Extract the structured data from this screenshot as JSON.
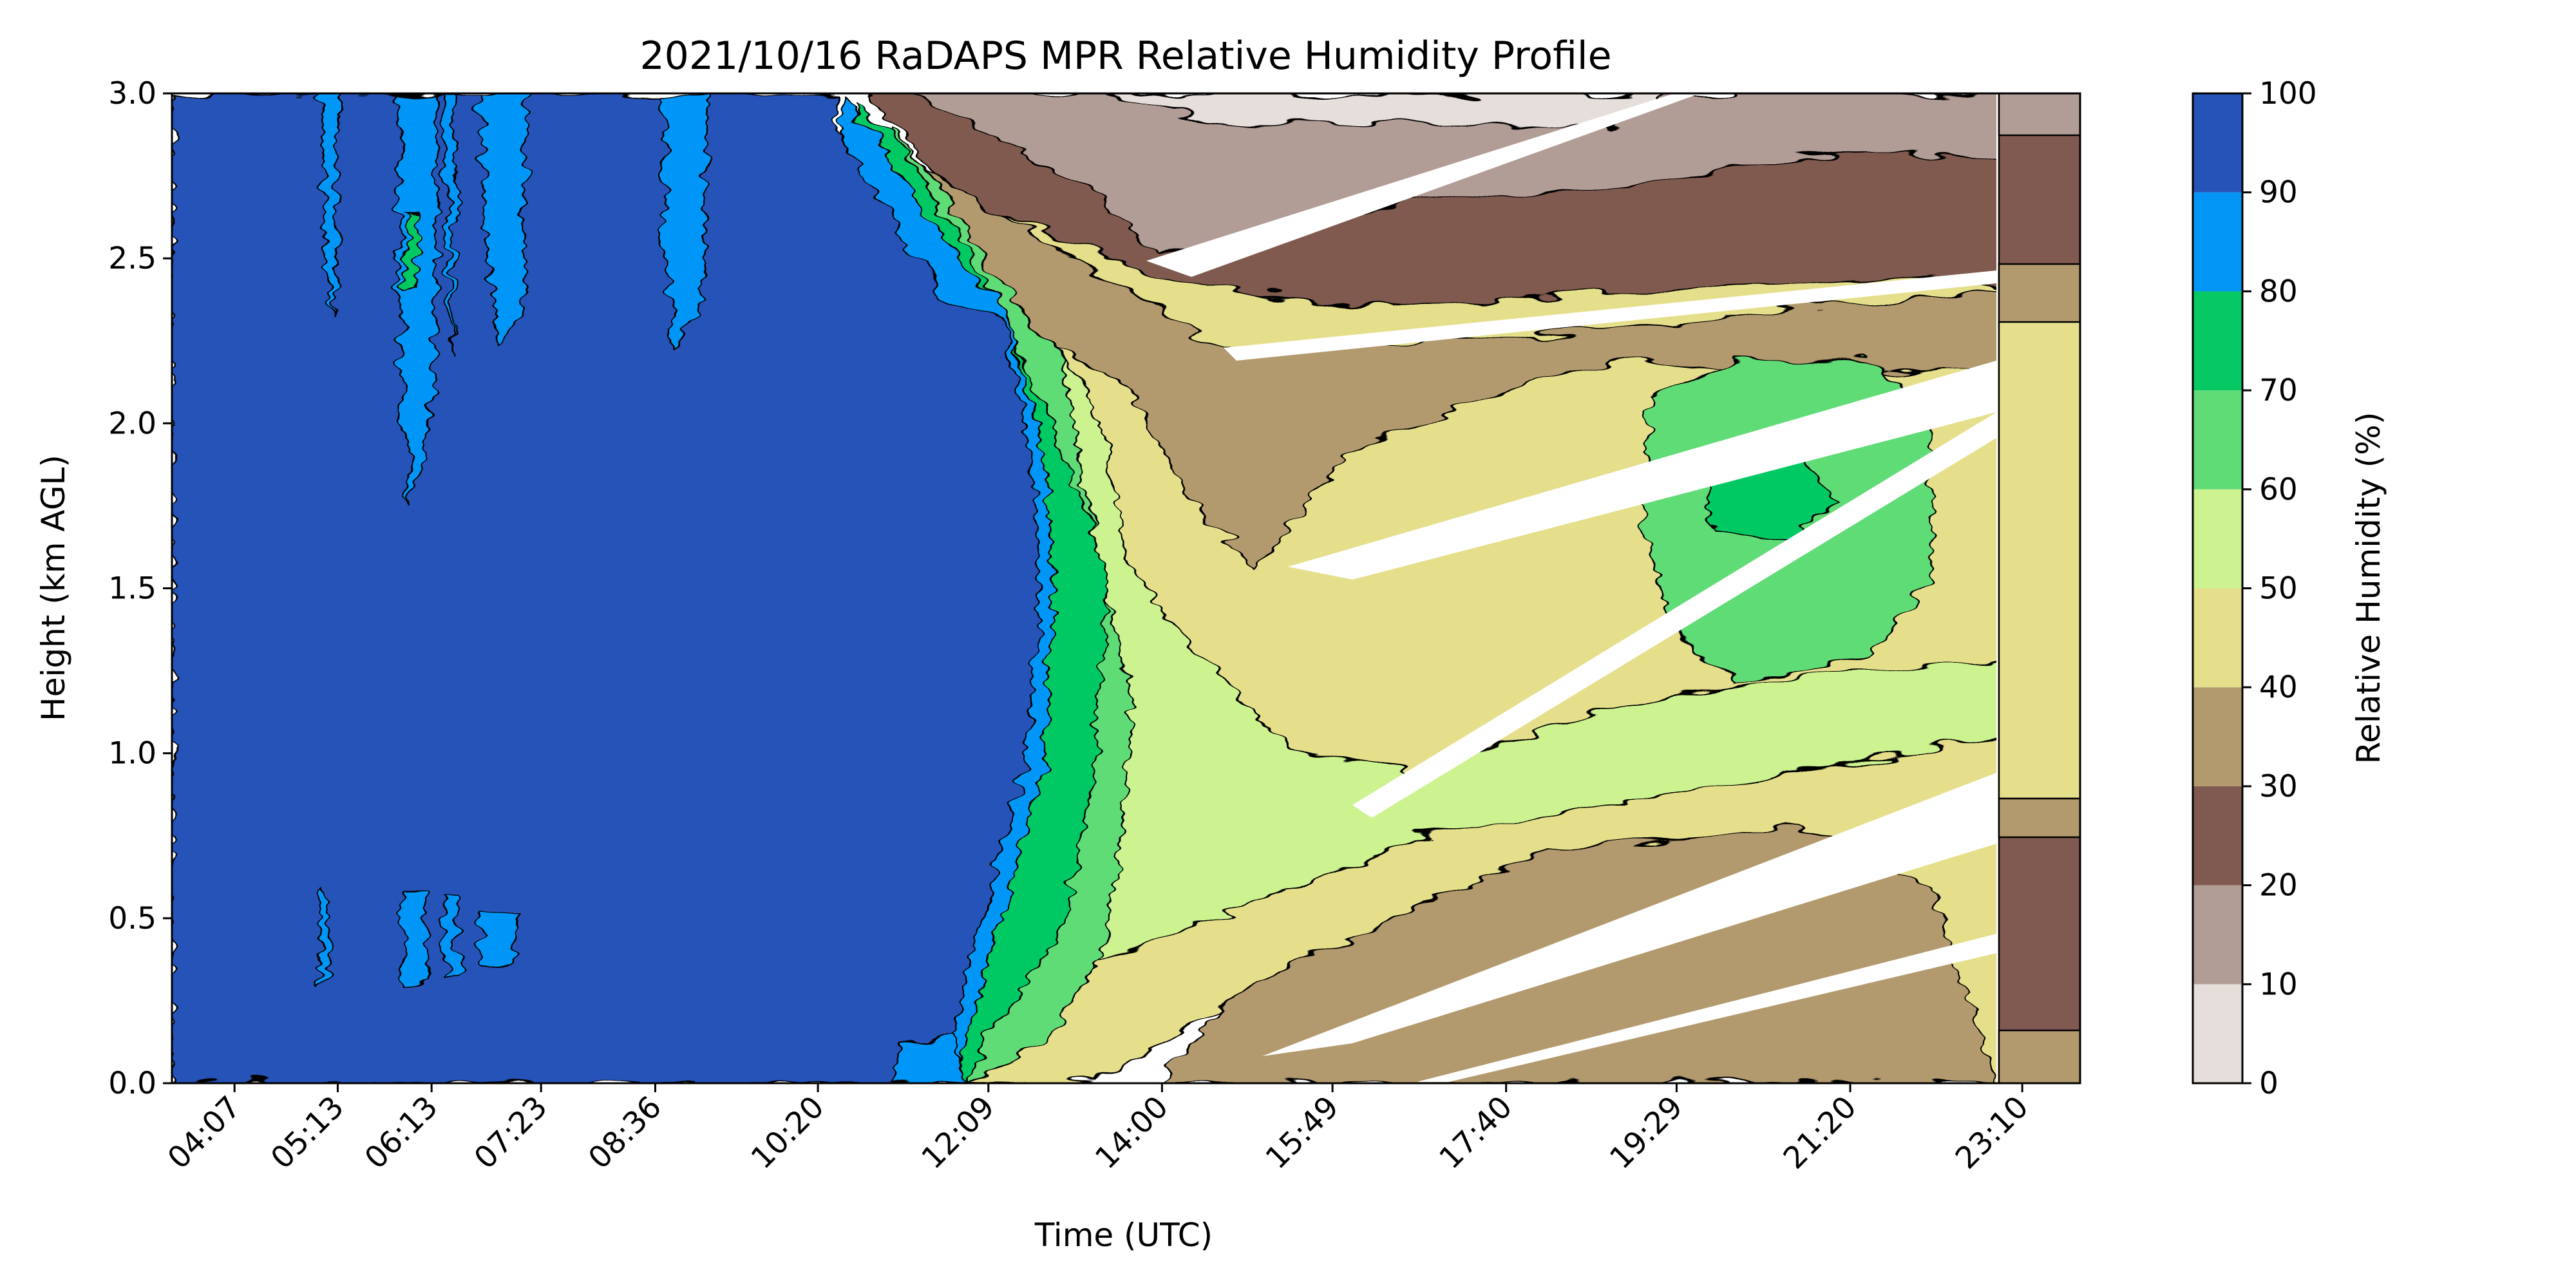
{
  "chart_data": {
    "type": "heatmap",
    "subtype": "filled-contour",
    "title": "2021/10/16 RaDAPS MPR Relative Humidity Profile",
    "xlabel": "Time (UTC)",
    "ylabel": "Height (km AGL)",
    "x_ticks": [
      "04:07",
      "05:13",
      "06:13",
      "07:23",
      "08:36",
      "10:20",
      "12:09",
      "14:00",
      "15:49",
      "17:40",
      "19:29",
      "21:20",
      "23:10"
    ],
    "ylim": [
      0.0,
      3.0
    ],
    "y_ticks": [
      "0.0",
      "0.5",
      "1.0",
      "1.5",
      "2.0",
      "2.5",
      "3.0"
    ],
    "grid": false,
    "colorbar": {
      "label": "Relative Humidity (%)",
      "levels": [
        0,
        10,
        20,
        30,
        40,
        50,
        60,
        70,
        80,
        90,
        100
      ],
      "tick_labels": [
        "0",
        "10",
        "20",
        "30",
        "40",
        "50",
        "60",
        "70",
        "80",
        "90",
        "100"
      ],
      "colors": [
        "#e6dedb",
        "#b29c96",
        "#805a50",
        "#b39a6e",
        "#e5df8c",
        "#ccf38f",
        "#5fdc76",
        "#06c964",
        "#0496f7",
        "#2553b8"
      ]
    },
    "regions": [
      {
        "band": "90-100",
        "time_range": [
          "04:07",
          "12:09"
        ],
        "height_range_km": [
          0.0,
          3.0
        ],
        "description_level": 95
      },
      {
        "band": "80-90",
        "time_range": [
          "12:09",
          "12:30"
        ],
        "height_range_km": [
          0.0,
          2.3
        ],
        "description_level": 85
      },
      {
        "band": "70-80",
        "time_range": [
          "12:20",
          "13:10"
        ],
        "height_range_km": [
          0.0,
          2.2
        ],
        "description_level": 75
      },
      {
        "band": "60-70",
        "time_range": [
          "12:40",
          "13:40"
        ],
        "height_range_km": [
          0.0,
          2.2
        ],
        "description_level": 65
      },
      {
        "band": "50-60",
        "time_range": [
          "13:00",
          "19:00"
        ],
        "height_range_km": [
          0.1,
          2.0
        ],
        "description_level": 55
      },
      {
        "band": "40-50",
        "time_range": [
          "13:30",
          "23:50"
        ],
        "height_range_km": [
          0.0,
          2.4
        ],
        "description_level": 45
      },
      {
        "band": "60-70",
        "time_range": [
          "19:10",
          "21:40"
        ],
        "height_range_km": [
          1.2,
          2.2
        ],
        "description_level": 65
      },
      {
        "band": "30-40",
        "time_range": [
          "14:20",
          "23:50"
        ],
        "height_range_km": [
          0.0,
          2.6
        ],
        "description_level": 35
      },
      {
        "band": "20-30",
        "time_range": [
          "13:00",
          "23:50"
        ],
        "height_range_km": [
          2.2,
          3.0
        ],
        "description_level": 25
      },
      {
        "band": "10-20",
        "time_range": [
          "14:00",
          "19:00"
        ],
        "height_range_km": [
          2.5,
          3.0
        ],
        "description_level": 15
      },
      {
        "band": "0-10",
        "time_range": [
          "15:00",
          "17:40"
        ],
        "height_range_km": [
          2.9,
          3.0
        ],
        "description_level": 5
      }
    ]
  }
}
